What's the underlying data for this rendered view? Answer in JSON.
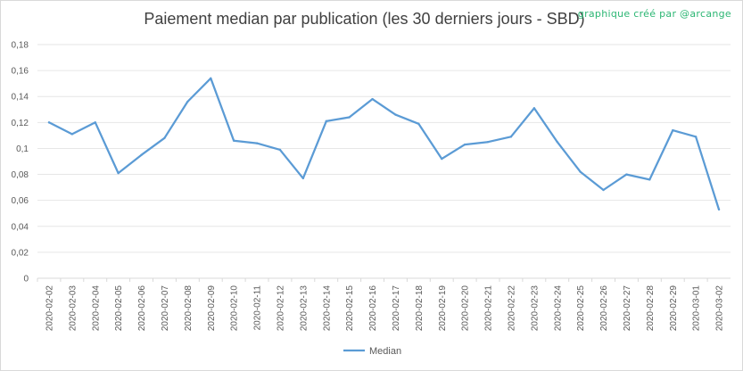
{
  "credit": "graphique créé par @arcange",
  "chart_data": {
    "type": "line",
    "title": "Paiement median par publication (les 30 derniers jours - SBD)",
    "xlabel": "",
    "ylabel": "",
    "ylim": [
      0,
      0.18
    ],
    "yticks": [
      "0",
      "0,02",
      "0,04",
      "0,06",
      "0,08",
      "0,1",
      "0,12",
      "0,14",
      "0,16",
      "0,18"
    ],
    "grid": true,
    "legend_position": "bottom",
    "categories": [
      "2020-02-02",
      "2020-02-03",
      "2020-02-04",
      "2020-02-05",
      "2020-02-06",
      "2020-02-07",
      "2020-02-08",
      "2020-02-09",
      "2020-02-10",
      "2020-02-11",
      "2020-02-12",
      "2020-02-13",
      "2020-02-14",
      "2020-02-15",
      "2020-02-16",
      "2020-02-17",
      "2020-02-18",
      "2020-02-19",
      "2020-02-20",
      "2020-02-21",
      "2020-02-22",
      "2020-02-23",
      "2020-02-24",
      "2020-02-25",
      "2020-02-26",
      "2020-02-27",
      "2020-02-28",
      "2020-02-29",
      "2020-03-01",
      "2020-03-02"
    ],
    "series": [
      {
        "name": "Median",
        "color": "#5b9bd5",
        "values": [
          0.12,
          0.111,
          0.12,
          0.081,
          0.095,
          0.108,
          0.136,
          0.154,
          0.106,
          0.104,
          0.099,
          0.077,
          0.121,
          0.124,
          0.138,
          0.126,
          0.119,
          0.092,
          0.103,
          0.105,
          0.109,
          0.131,
          0.105,
          0.082,
          0.068,
          0.08,
          0.076,
          0.114,
          0.109,
          0.053
        ]
      }
    ]
  }
}
